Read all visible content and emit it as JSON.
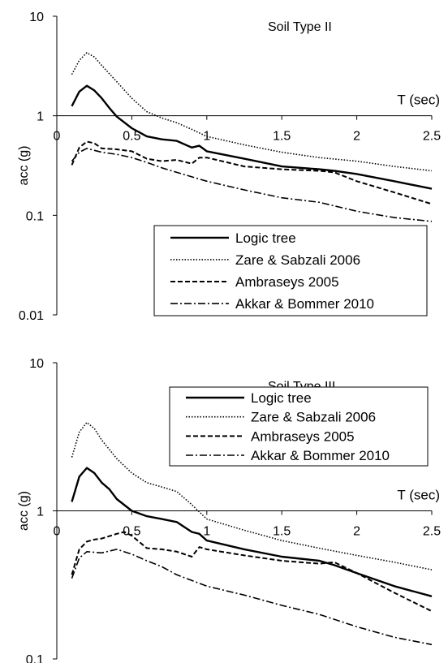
{
  "chart_data": [
    {
      "type": "line",
      "title": "Soil Type II",
      "xlabel": "T (sec)",
      "ylabel": "acc (g)",
      "xlim": [
        0,
        2.5
      ],
      "ylim": [
        0.01,
        10
      ],
      "yscale": "log",
      "x_axis_at_y": 1,
      "x_ticks": [
        "0",
        "0.5",
        "1",
        "1.5",
        "2",
        "2.5"
      ],
      "y_ticks": [
        "0.01",
        "0.1",
        "1",
        "10"
      ],
      "grid": false,
      "legend_position": "bottom-right",
      "series": [
        {
          "name": "Logic tree",
          "style": "solid",
          "x": [
            0.1,
            0.15,
            0.2,
            0.25,
            0.3,
            0.35,
            0.4,
            0.5,
            0.6,
            0.7,
            0.8,
            0.9,
            0.95,
            1.0,
            1.25,
            1.5,
            1.75,
            1.85,
            2.0,
            2.25,
            2.5
          ],
          "y": [
            1.25,
            1.75,
            2.0,
            1.8,
            1.5,
            1.2,
            0.98,
            0.75,
            0.62,
            0.58,
            0.56,
            0.48,
            0.5,
            0.44,
            0.37,
            0.31,
            0.29,
            0.28,
            0.26,
            0.22,
            0.185
          ]
        },
        {
          "name": "Zare & Sabzali 2006",
          "style": "dotted",
          "x": [
            0.1,
            0.15,
            0.2,
            0.25,
            0.3,
            0.4,
            0.5,
            0.6,
            0.7,
            0.8,
            0.9,
            1.0,
            1.25,
            1.5,
            1.75,
            2.0,
            2.25,
            2.5
          ],
          "y": [
            2.6,
            3.6,
            4.3,
            3.9,
            3.2,
            2.2,
            1.5,
            1.1,
            0.95,
            0.85,
            0.73,
            0.62,
            0.51,
            0.43,
            0.38,
            0.35,
            0.31,
            0.28
          ]
        },
        {
          "name": "Ambraseys 2005",
          "style": "dashed",
          "x": [
            0.1,
            0.15,
            0.2,
            0.25,
            0.3,
            0.4,
            0.5,
            0.6,
            0.7,
            0.8,
            0.9,
            0.95,
            1.0,
            1.25,
            1.5,
            1.75,
            1.85,
            2.0,
            2.25,
            2.5
          ],
          "y": [
            0.32,
            0.48,
            0.55,
            0.53,
            0.47,
            0.46,
            0.44,
            0.37,
            0.35,
            0.36,
            0.33,
            0.38,
            0.38,
            0.31,
            0.29,
            0.28,
            0.27,
            0.22,
            0.17,
            0.13
          ]
        },
        {
          "name": "Akkar & Bommer 2010",
          "style": "dashdot",
          "x": [
            0.1,
            0.15,
            0.2,
            0.3,
            0.4,
            0.5,
            0.6,
            0.7,
            0.8,
            1.0,
            1.25,
            1.5,
            1.75,
            2.0,
            2.25,
            2.5
          ],
          "y": [
            0.35,
            0.43,
            0.47,
            0.43,
            0.41,
            0.38,
            0.34,
            0.3,
            0.27,
            0.22,
            0.18,
            0.15,
            0.135,
            0.11,
            0.095,
            0.087
          ]
        }
      ]
    },
    {
      "type": "line",
      "title": "Soil Type III",
      "xlabel": "T (sec)",
      "ylabel": "acc (g)",
      "xlim": [
        0,
        2.5
      ],
      "ylim": [
        0.1,
        10
      ],
      "yscale": "log",
      "x_axis_at_y": 1,
      "x_ticks": [
        "0",
        "0.5",
        "1",
        "1.5",
        "2",
        "2.5"
      ],
      "y_ticks": [
        "0.1",
        "1",
        "10"
      ],
      "grid": false,
      "legend_position": "top-right",
      "series": [
        {
          "name": "Logic tree",
          "style": "solid",
          "x": [
            0.1,
            0.15,
            0.2,
            0.25,
            0.3,
            0.35,
            0.4,
            0.5,
            0.6,
            0.7,
            0.8,
            0.9,
            0.95,
            1.0,
            1.25,
            1.5,
            1.75,
            1.85,
            2.0,
            2.25,
            2.5
          ],
          "y": [
            1.15,
            1.7,
            1.95,
            1.8,
            1.55,
            1.4,
            1.2,
            1.0,
            0.92,
            0.88,
            0.84,
            0.72,
            0.7,
            0.63,
            0.55,
            0.49,
            0.46,
            0.43,
            0.38,
            0.31,
            0.265
          ]
        },
        {
          "name": "Zare & Sabzali 2006",
          "style": "dotted",
          "x": [
            0.1,
            0.15,
            0.2,
            0.25,
            0.3,
            0.4,
            0.5,
            0.6,
            0.7,
            0.8,
            0.9,
            1.0,
            1.25,
            1.5,
            1.75,
            2.0,
            2.25,
            2.5
          ],
          "y": [
            2.3,
            3.4,
            3.95,
            3.6,
            3.0,
            2.25,
            1.8,
            1.55,
            1.45,
            1.35,
            1.1,
            0.88,
            0.74,
            0.63,
            0.56,
            0.5,
            0.45,
            0.4
          ]
        },
        {
          "name": "Ambraseys 2005",
          "style": "dashed",
          "x": [
            0.1,
            0.15,
            0.2,
            0.25,
            0.3,
            0.4,
            0.45,
            0.5,
            0.6,
            0.7,
            0.8,
            0.9,
            0.95,
            1.0,
            1.25,
            1.5,
            1.75,
            1.85,
            2.0,
            2.25,
            2.5
          ],
          "y": [
            0.37,
            0.55,
            0.62,
            0.64,
            0.65,
            0.7,
            0.72,
            0.68,
            0.56,
            0.55,
            0.53,
            0.49,
            0.57,
            0.55,
            0.5,
            0.46,
            0.44,
            0.45,
            0.38,
            0.28,
            0.21
          ]
        },
        {
          "name": "Akkar & Bommer 2010",
          "style": "dashdot",
          "x": [
            0.1,
            0.15,
            0.2,
            0.3,
            0.4,
            0.5,
            0.6,
            0.7,
            0.8,
            1.0,
            1.25,
            1.5,
            1.75,
            2.0,
            2.25,
            2.5
          ],
          "y": [
            0.35,
            0.48,
            0.53,
            0.52,
            0.55,
            0.51,
            0.46,
            0.42,
            0.37,
            0.31,
            0.27,
            0.23,
            0.2,
            0.165,
            0.14,
            0.125
          ]
        }
      ]
    }
  ]
}
